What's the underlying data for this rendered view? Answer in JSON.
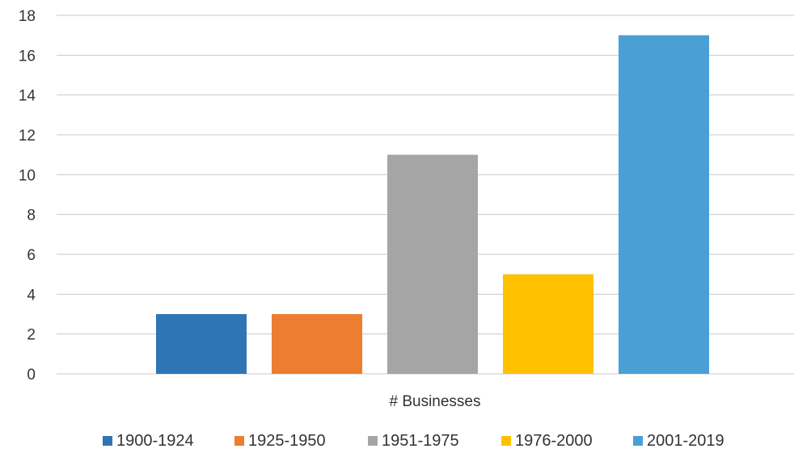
{
  "chart_data": {
    "type": "bar",
    "title": "",
    "xlabel": "# Businesses",
    "ylabel": "",
    "ylim": [
      0,
      18
    ],
    "yticks": [
      0,
      2,
      4,
      6,
      8,
      10,
      12,
      14,
      16,
      18
    ],
    "grid": true,
    "legend_position": "bottom",
    "categories": [
      "# Businesses"
    ],
    "series": [
      {
        "name": "1900-1924",
        "values": [
          3
        ],
        "color": "#2e75b6"
      },
      {
        "name": "1925-1950",
        "values": [
          3
        ],
        "color": "#ed7d31"
      },
      {
        "name": "1951-1975",
        "values": [
          11
        ],
        "color": "#a5a5a5"
      },
      {
        "name": "1976-2000",
        "values": [
          5
        ],
        "color": "#ffc000"
      },
      {
        "name": "2001-2019",
        "values": [
          17
        ],
        "color": "#4a9fd5"
      }
    ]
  }
}
